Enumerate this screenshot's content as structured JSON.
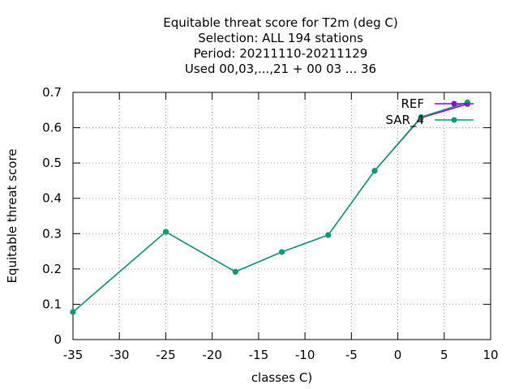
{
  "chart_data": {
    "type": "line",
    "title_lines": [
      "Equitable threat score  for T2m (deg C)",
      "Selection: ALL    194 stations",
      "Period: 20211110-20211129",
      "Used  00,03,...,21  + 00 03 ... 36"
    ],
    "xlabel": "classes C)",
    "ylabel": "Equitable threat score",
    "xlim": [
      -35,
      10
    ],
    "ylim": [
      0,
      0.7
    ],
    "x_ticks": [
      -35,
      -30,
      -25,
      -20,
      -15,
      -10,
      -5,
      0,
      5,
      10
    ],
    "y_ticks": [
      0,
      0.1,
      0.2,
      0.3,
      0.4,
      0.5,
      0.6,
      0.7
    ],
    "x_tick_labels": [
      "-35",
      "-30",
      "-25",
      "-20",
      "-15",
      "-10",
      "-5",
      "0",
      "5",
      "10"
    ],
    "y_tick_labels": [
      "0",
      "0.1",
      "0.2",
      "0.3",
      "0.4",
      "0.5",
      "0.6",
      "0.7"
    ],
    "grid": true,
    "legend_position": "top-right",
    "series": [
      {
        "name": "REF",
        "color": "#9400d3",
        "x": [
          -35,
          -25,
          -17.5,
          -12.5,
          -7.5,
          -2.5,
          2.5,
          7.5
        ],
        "y": [
          0.078,
          0.305,
          0.192,
          0.248,
          0.296,
          0.478,
          0.628,
          0.667
        ]
      },
      {
        "name": "SAR_4",
        "color": "#009e73",
        "x": [
          -35,
          -25,
          -17.5,
          -12.5,
          -7.5,
          -2.5,
          2.5,
          7.5
        ],
        "y": [
          0.078,
          0.305,
          0.192,
          0.248,
          0.296,
          0.478,
          0.63,
          0.672
        ]
      }
    ]
  }
}
